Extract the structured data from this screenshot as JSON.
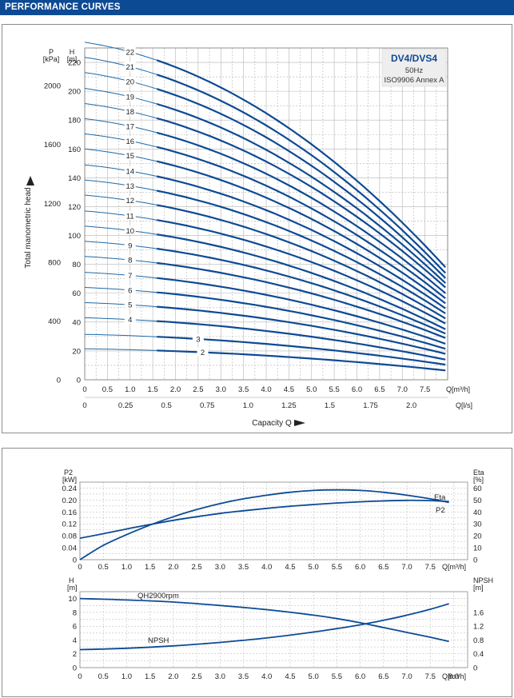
{
  "header": {
    "title": "PERFORMANCE CURVES",
    "bar_color": "#0d4a94"
  },
  "colors": {
    "curve": "#0d4a94",
    "thin_curve": "#1e6aa8",
    "grid": "#b4b4b4",
    "legend_bg": "#eeeeee"
  },
  "chart_data": [
    {
      "id": "total-head",
      "type": "line",
      "legend": {
        "model": "DV4/DVS4",
        "frequency": "50Hz",
        "standard": "ISO9906 Annex A",
        "placement": "top-right"
      },
      "ylabel": "Total manometric head",
      "xlabel": "Capacity Q",
      "y_unit_left": "P\n[kPa]",
      "y_unit_right": "H\n[m]",
      "y_unit_left_parts": [
        "P",
        "[kPa]"
      ],
      "y_unit_right_parts": [
        "H",
        "[m]"
      ],
      "x_unit_primary": "Q[m³/h]",
      "x_unit_secondary": "Q[l/s]",
      "xlim": [
        0,
        8.0
      ],
      "ylim": [
        0,
        230
      ],
      "x_ticks": [
        "0",
        "0.5",
        "1.0",
        "1.5",
        "2.0",
        "2.5",
        "3.0",
        "3.5",
        "4.0",
        "4.5",
        "5.0",
        "5.5",
        "6.0",
        "6.5",
        "7.0",
        "7.5"
      ],
      "x_ticks_ls": [
        "0",
        "0.25",
        "0.5",
        "0.75",
        "1.0",
        "1.25",
        "1.5",
        "1.75",
        "2.0"
      ],
      "y_ticks_m": [
        "0",
        "20",
        "40",
        "60",
        "80",
        "100",
        "120",
        "140",
        "160",
        "180",
        "200",
        "220"
      ],
      "y_ticks_kpa": [
        "0",
        "400",
        "800",
        "1200",
        "1600",
        "2000"
      ],
      "series": [
        {
          "name": "2",
          "stages": 2,
          "head_at_0": 21.5,
          "head_at_max": 6.5
        },
        {
          "name": "3",
          "stages": 3,
          "head_at_0": 31.5,
          "head_at_max": 10.5
        },
        {
          "name": "4",
          "stages": 4,
          "head_at_0": 43,
          "head_at_max": 14
        },
        {
          "name": "5",
          "stages": 5,
          "head_at_0": 53.5,
          "head_at_max": 18
        },
        {
          "name": "6",
          "stages": 6,
          "head_at_0": 64,
          "head_at_max": 21.5
        },
        {
          "name": "7",
          "stages": 7,
          "head_at_0": 74.5,
          "head_at_max": 25
        },
        {
          "name": "8",
          "stages": 8,
          "head_at_0": 85.5,
          "head_at_max": 29
        },
        {
          "name": "9",
          "stages": 9,
          "head_at_0": 96,
          "head_at_max": 32
        },
        {
          "name": "10",
          "stages": 10,
          "head_at_0": 106.5,
          "head_at_max": 35
        },
        {
          "name": "11",
          "stages": 11,
          "head_at_0": 117,
          "head_at_max": 39
        },
        {
          "name": "12",
          "stages": 12,
          "head_at_0": 128,
          "head_at_max": 42.5
        },
        {
          "name": "13",
          "stages": 13,
          "head_at_0": 138.5,
          "head_at_max": 46
        },
        {
          "name": "14",
          "stages": 14,
          "head_at_0": 149,
          "head_at_max": 49.5
        },
        {
          "name": "15",
          "stages": 15,
          "head_at_0": 160,
          "head_at_max": 53
        },
        {
          "name": "16",
          "stages": 16,
          "head_at_0": 170.5,
          "head_at_max": 56.5
        },
        {
          "name": "17",
          "stages": 17,
          "head_at_0": 181,
          "head_at_max": 60
        },
        {
          "name": "18",
          "stages": 18,
          "head_at_0": 191.5,
          "head_at_max": 64
        },
        {
          "name": "19",
          "stages": 19,
          "head_at_0": 202,
          "head_at_max": 67
        },
        {
          "name": "20",
          "stages": 20,
          "head_at_0": 213,
          "head_at_max": 70.5
        },
        {
          "name": "21",
          "stages": 21,
          "head_at_0": 223.5,
          "head_at_max": 74
        },
        {
          "name": "22",
          "stages": 22,
          "head_at_0": 234,
          "head_at_max": 78
        }
      ],
      "series_label_x": [
        2.6,
        2.5,
        1.0,
        1.0,
        1.0,
        1.0,
        1.0,
        1.0,
        1.0,
        1.0,
        1.0,
        1.0,
        1.0,
        1.0,
        1.0,
        1.0,
        1.0,
        1.0,
        1.0,
        1.0,
        1.0
      ],
      "grid": true
    },
    {
      "id": "power-efficiency",
      "type": "line",
      "xlim": [
        0,
        8.0
      ],
      "y_unit_left": "P2\n[kW]",
      "y_unit_left_parts": [
        "P2",
        "[kW]"
      ],
      "y_unit_right_parts": [
        "Eta",
        "[%]"
      ],
      "x_unit": "Q[m³/h]",
      "y_ticks_left": [
        "0",
        "0.04",
        "0.08",
        "0.12",
        "0.16",
        "0.20",
        "0.24"
      ],
      "y_ticks_right": [
        "0",
        "10",
        "20",
        "30",
        "40",
        "50",
        "60"
      ],
      "x_ticks": [
        "0",
        "0.5",
        "1.0",
        "1.5",
        "2.0",
        "2.5",
        "3.0",
        "3.5",
        "4.0",
        "4.5",
        "5.0",
        "5.5",
        "6.0",
        "6.5",
        "7.0",
        "7.5"
      ],
      "series": [
        {
          "name": "Eta",
          "axis": "right",
          "unit": "%",
          "x": [
            0,
            0.5,
            1.0,
            1.5,
            2.0,
            2.5,
            3.0,
            3.5,
            4.0,
            4.5,
            5.0,
            5.5,
            6.0,
            6.5,
            7.0,
            7.5,
            7.9
          ],
          "y": [
            0,
            12,
            21,
            29,
            36,
            42,
            47,
            51,
            54,
            56.5,
            58,
            58.5,
            58,
            56.5,
            54,
            51,
            48
          ]
        },
        {
          "name": "P2",
          "axis": "left",
          "unit": "kW",
          "x": [
            0,
            0.5,
            1.0,
            1.5,
            2.0,
            2.5,
            3.0,
            3.5,
            4.0,
            4.5,
            5.0,
            5.5,
            6.0,
            6.5,
            7.0,
            7.5,
            7.9
          ],
          "y": [
            0.072,
            0.087,
            0.103,
            0.118,
            0.132,
            0.144,
            0.155,
            0.164,
            0.172,
            0.179,
            0.185,
            0.19,
            0.194,
            0.197,
            0.199,
            0.198,
            0.195
          ]
        }
      ],
      "grid": true
    },
    {
      "id": "head-npsh",
      "type": "line",
      "xlim": [
        0,
        8.0
      ],
      "y_unit_left": "H\n[m]",
      "y_unit_left_parts": [
        "H",
        "[m]"
      ],
      "y_unit_right_parts": [
        "NPSH",
        "[m]"
      ],
      "x_unit": "Q[m³/h]",
      "y_ticks_left": [
        "0",
        "2",
        "4",
        "6",
        "8",
        "10"
      ],
      "y_ticks_right": [
        "0",
        "0.4",
        "0.8",
        "1.2",
        "1.6"
      ],
      "x_ticks": [
        "0",
        "0.5",
        "1.0",
        "1.5",
        "2.0",
        "2.5",
        "3.0",
        "3.5",
        "4.0",
        "4.5",
        "5.0",
        "5.5",
        "6.0",
        "6.5",
        "7.0",
        "7.5",
        "8.0"
      ],
      "series": [
        {
          "name": "QH2900rpm",
          "axis": "left",
          "unit": "m",
          "x": [
            0,
            1,
            2,
            3,
            4,
            5,
            5.5,
            6,
            6.5,
            7,
            7.5,
            7.9
          ],
          "y": [
            10.0,
            9.8,
            9.5,
            9.0,
            8.4,
            7.6,
            7.1,
            6.5,
            5.8,
            5.1,
            4.4,
            3.8
          ]
        },
        {
          "name": "NPSH",
          "axis": "right",
          "unit": "m",
          "x": [
            0,
            1,
            2,
            3,
            4,
            5,
            5.5,
            6,
            6.5,
            7,
            7.5,
            7.9
          ],
          "y": [
            0.52,
            0.56,
            0.63,
            0.73,
            0.86,
            1.03,
            1.13,
            1.24,
            1.37,
            1.52,
            1.69,
            1.85
          ]
        }
      ],
      "grid": true
    }
  ]
}
